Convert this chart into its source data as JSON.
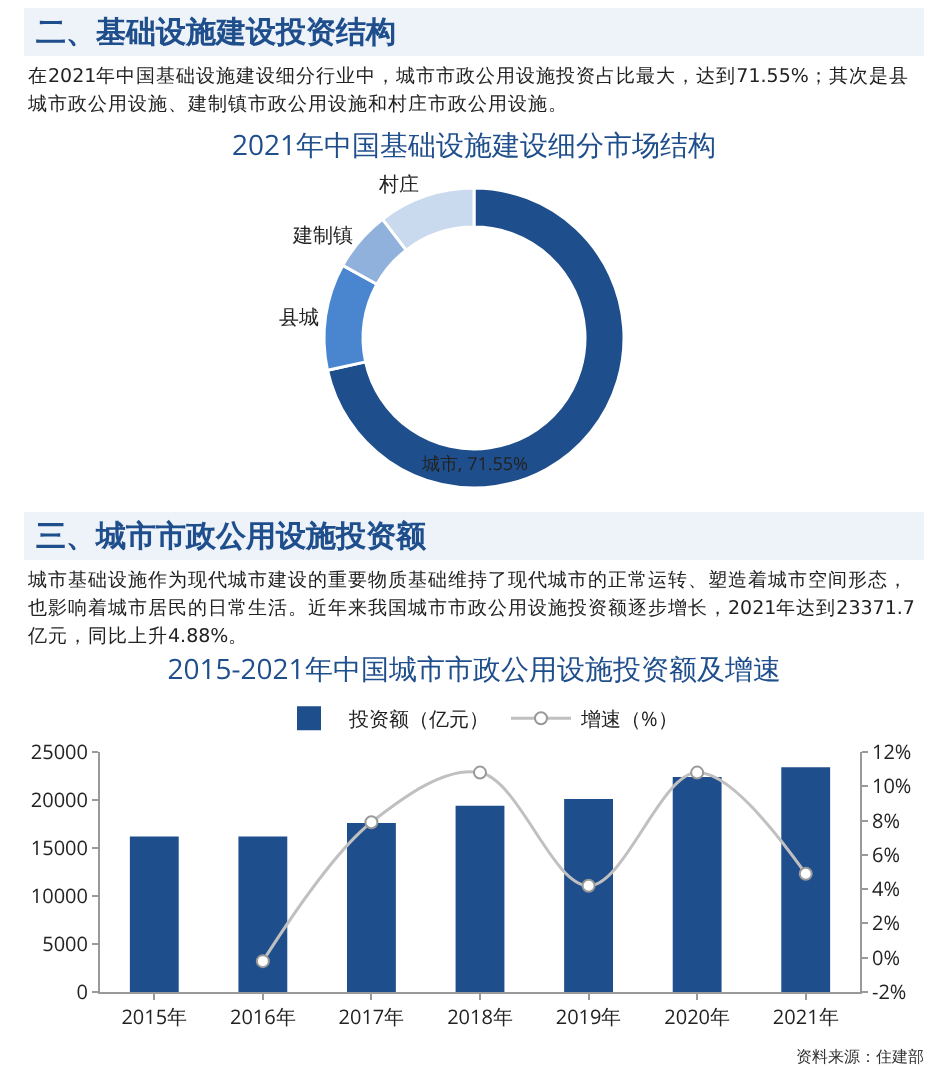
{
  "chart_data": [
    {
      "type": "donut",
      "title": "2021年中国基础设施建设细分市场结构",
      "annotations": [
        "二、基础设施建设投资结构",
        "在2021年中国基础设施建设细分行业中，城市市政公用设施投资占比最大，达到71.55%；其次是县城市政公用设施、建制镇市政公用设施和村庄市政公用设施。"
      ],
      "categories": [
        "城市",
        "县城",
        "建制镇",
        "村庄"
      ],
      "values": [
        71.55,
        11.5,
        6.5,
        10.45
      ],
      "value_labels": [
        "71.55%",
        null,
        null,
        null
      ],
      "colors": [
        "#1f4e8c",
        "#4a86d0",
        "#8fb1dc",
        "#c9d9ee"
      ],
      "legend": false
    },
    {
      "type": "bar",
      "title": "2015-2021年中国城市市政公用设施投资额及增速",
      "annotations": [
        "三、城市市政公用设施投资额",
        "城市基础设施作为现代城市建设的重要物质基础维持了现代城市的正常运转、塑造着城市空间形态，也影响着城市居民的日常生活。近年来我国城市市政公用设施投资额逐步增长，2021年达到23371.7亿元，同比上升4.88%。",
        "资料来源：住建部"
      ],
      "categories": [
        "2015年",
        "2016年",
        "2017年",
        "2018年",
        "2019年",
        "2020年",
        "2021年"
      ],
      "series": [
        {
          "name": "投资额（亿元）",
          "type": "bar",
          "color": "#1f4e8c",
          "values": [
            16200,
            16200,
            17600,
            19400,
            20100,
            22400,
            23400
          ]
        },
        {
          "name": "增速（%）",
          "type": "line",
          "axis": "y2",
          "color": "#c0c0c0",
          "marker": "circle",
          "values": [
            null,
            -0.2,
            7.9,
            10.8,
            4.2,
            10.8,
            4.9
          ]
        }
      ],
      "ylim": [
        0,
        25000
      ],
      "yticks": [
        0,
        5000,
        10000,
        15000,
        20000,
        25000
      ],
      "y2lim": [
        -2,
        12
      ],
      "y2ticks": [
        {
          "value": -2,
          "label": "-2%"
        },
        {
          "value": 0,
          "label": "0%"
        },
        {
          "value": 2,
          "label": "2%"
        },
        {
          "value": 4,
          "label": "4%"
        },
        {
          "value": 6,
          "label": "6%"
        },
        {
          "value": 8,
          "label": "8%"
        },
        {
          "value": 10,
          "label": "10%"
        },
        {
          "value": 12,
          "label": "12%"
        }
      ],
      "grid": false,
      "legend": "top"
    }
  ]
}
